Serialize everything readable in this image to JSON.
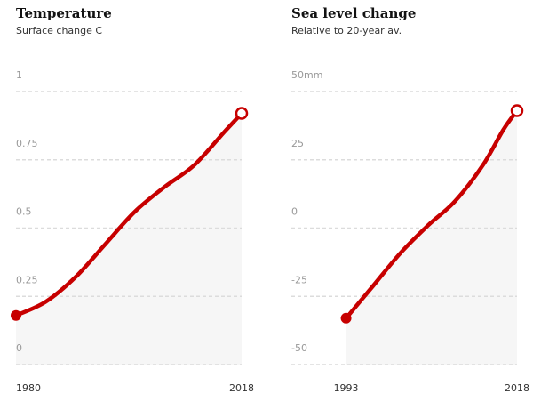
{
  "colors": {
    "line": "#c70000",
    "grid": "#dcdcdc",
    "area": "#f6f6f6",
    "tick": "#999999"
  },
  "chart_data": [
    {
      "type": "line",
      "title": "Temperature",
      "subtitle": "Surface change C",
      "ylim": [
        0,
        1
      ],
      "yticks": [
        "1",
        "0.75",
        "0.5",
        "0.25",
        "0"
      ],
      "ytick_values": [
        1,
        0.75,
        0.5,
        0.25,
        0
      ],
      "xlim": [
        1980,
        2018
      ],
      "xtick_labels": [
        "1980",
        "2018"
      ],
      "grid": true,
      "series": [
        {
          "x": [
            1980,
            1985,
            1990,
            1995,
            2000,
            2005,
            2010,
            2015,
            2018
          ],
          "values": [
            0.18,
            0.23,
            0.32,
            0.44,
            0.56,
            0.65,
            0.73,
            0.85,
            0.92
          ]
        }
      ]
    },
    {
      "type": "line",
      "title": "Sea level change",
      "subtitle": "Relative to 20-year av.",
      "ylim": [
        -50,
        50
      ],
      "yticks": [
        "50mm",
        "25",
        "0",
        "-25",
        "-50"
      ],
      "ytick_values": [
        50,
        25,
        0,
        -25,
        -50
      ],
      "xlim": [
        1985,
        2018
      ],
      "xtick_labels": [
        "1993",
        "2018"
      ],
      "grid": true,
      "series": [
        {
          "x": [
            1993,
            1997,
            2001,
            2005,
            2009,
            2013,
            2016,
            2018
          ],
          "values": [
            -33,
            -21,
            -9,
            1,
            10,
            23,
            36,
            43
          ]
        }
      ]
    }
  ]
}
